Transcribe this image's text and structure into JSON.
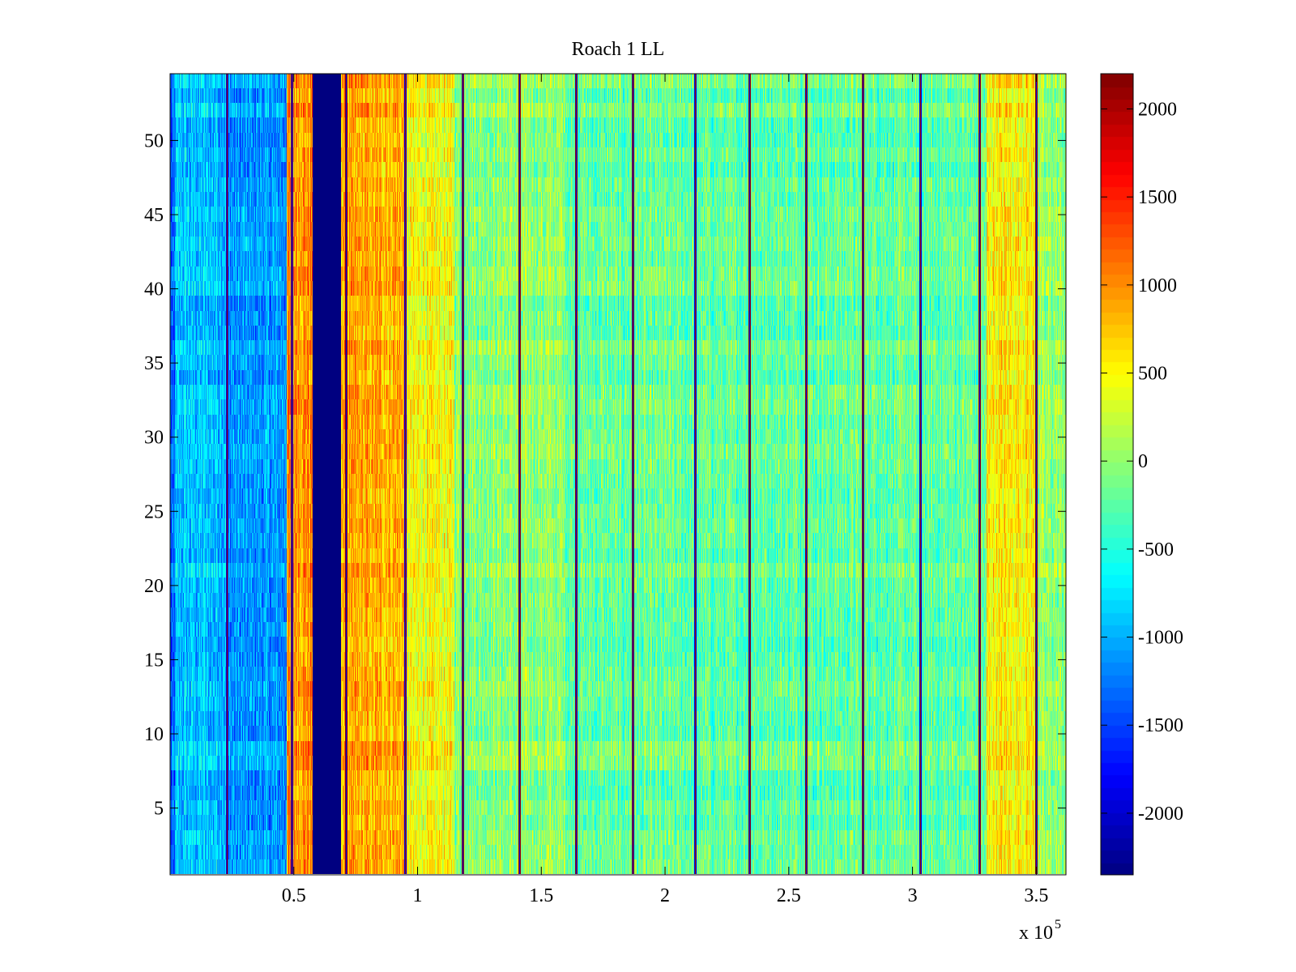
{
  "chart_data": {
    "type": "heatmap",
    "title": "Roach 1 LL",
    "xlabel": "",
    "ylabel": "",
    "x_multiplier_label": "x 10",
    "x_multiplier_exponent": "5",
    "xlim": [
      0,
      3.62
    ],
    "ylim": [
      0.5,
      54.5
    ],
    "rows": 54,
    "xticks": [
      0.5,
      1,
      1.5,
      2,
      2.5,
      3,
      3.5
    ],
    "xtick_labels": [
      "0.5",
      "1",
      "1.5",
      "2",
      "2.5",
      "3",
      "3.5"
    ],
    "yticks": [
      5,
      10,
      15,
      20,
      25,
      30,
      35,
      40,
      45,
      50
    ],
    "ytick_labels": [
      "5",
      "10",
      "15",
      "20",
      "25",
      "30",
      "35",
      "40",
      "45",
      "50"
    ],
    "colormap": "jet",
    "clim": [
      -2350,
      2200
    ],
    "colorbar_ticks": [
      -2000,
      -1500,
      -1000,
      -500,
      0,
      500,
      1000,
      1500,
      2000
    ],
    "colorbar_tick_labels": [
      "-2000",
      "-1500",
      "-1000",
      "-500",
      "0",
      "500",
      "1000",
      "1500",
      "2000"
    ],
    "column_profile": [
      {
        "x0": 0.0,
        "x1": 0.02,
        "value": -1400
      },
      {
        "x0": 0.02,
        "x1": 0.23,
        "value": -900
      },
      {
        "x0": 0.23,
        "x1": 0.47,
        "value": -1100
      },
      {
        "x0": 0.47,
        "x1": 0.575,
        "value": 1000
      },
      {
        "x0": 0.575,
        "x1": 0.69,
        "value": -2350
      },
      {
        "x0": 0.69,
        "x1": 0.95,
        "value": 850
      },
      {
        "x0": 0.95,
        "x1": 1.15,
        "value": 450
      },
      {
        "x0": 1.15,
        "x1": 1.6,
        "value": 0
      },
      {
        "x0": 1.6,
        "x1": 3.3,
        "value": -200
      },
      {
        "x0": 3.3,
        "x1": 3.5,
        "value": 550
      },
      {
        "x0": 3.5,
        "x1": 3.62,
        "value": 0
      }
    ],
    "dark_column_lines": [
      0.23,
      0.49,
      0.71,
      0.95,
      1.18,
      1.41,
      1.64,
      1.87,
      2.12,
      2.34,
      2.57,
      2.8,
      3.03,
      3.27,
      3.5
    ],
    "notes": "values read approximately from colorbar; fine-grained noise not individually readable"
  }
}
